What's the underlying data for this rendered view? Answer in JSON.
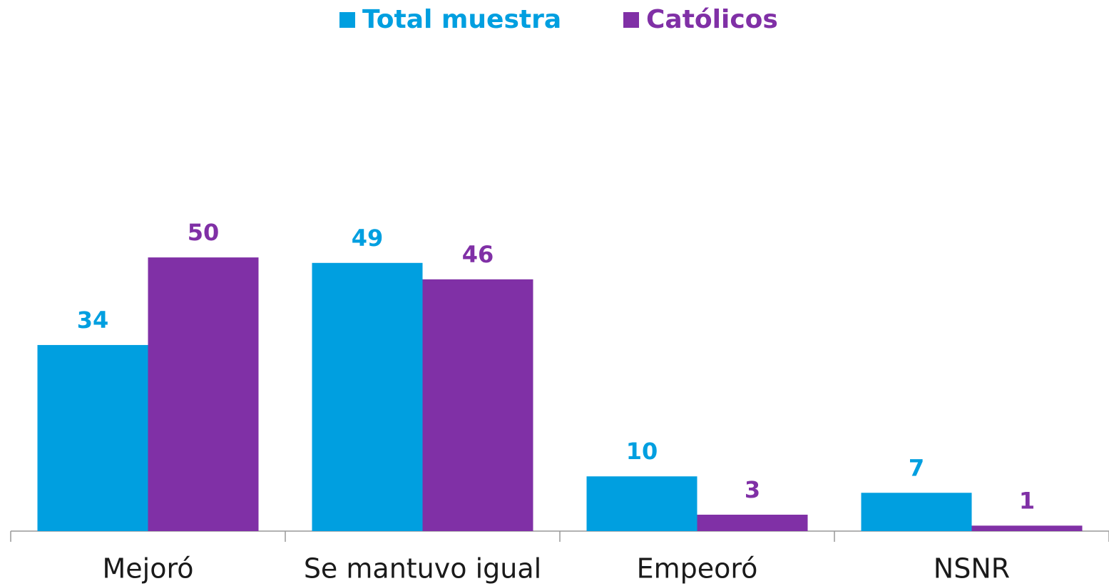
{
  "chart_data": {
    "type": "bar",
    "categories": [
      "Mejoró",
      "Se mantuvo igual",
      "Empeoró",
      "NSNR"
    ],
    "series": [
      {
        "name": "Total muestra",
        "color": "#009fe0",
        "values": [
          34,
          49,
          10,
          7
        ]
      },
      {
        "name": "Católicos",
        "color": "#8030a6",
        "values": [
          50,
          46,
          3,
          1
        ]
      }
    ],
    "ylim": [
      0,
      90
    ],
    "legend": "top"
  }
}
